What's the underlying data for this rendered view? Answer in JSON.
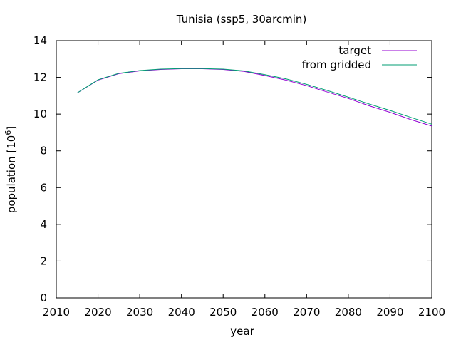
{
  "chart_data": {
    "type": "line",
    "title": "Tunisia (ssp5, 30arcmin)",
    "xlabel": "year",
    "ylabel": "population [10",
    "ylabel_exponent": "6",
    "ylabel_suffix": "]",
    "xlim": [
      2010,
      2100
    ],
    "ylim": [
      0,
      14
    ],
    "xticks": [
      2010,
      2020,
      2030,
      2040,
      2050,
      2060,
      2070,
      2080,
      2090,
      2100
    ],
    "yticks": [
      0,
      2,
      4,
      6,
      8,
      10,
      12,
      14
    ],
    "legend_position": "top-right",
    "grid": false,
    "series": [
      {
        "name": "target",
        "color": "#9400d3",
        "x": [
          2015,
          2020,
          2025,
          2030,
          2035,
          2040,
          2045,
          2050,
          2055,
          2060,
          2065,
          2070,
          2075,
          2080,
          2085,
          2090,
          2095,
          2100
        ],
        "y": [
          11.15,
          11.85,
          12.2,
          12.35,
          12.43,
          12.47,
          12.47,
          12.43,
          12.32,
          12.1,
          11.85,
          11.55,
          11.2,
          10.85,
          10.45,
          10.1,
          9.7,
          9.35
        ]
      },
      {
        "name": "from gridded",
        "color": "#009e73",
        "x": [
          2015,
          2020,
          2025,
          2030,
          2035,
          2040,
          2045,
          2050,
          2055,
          2060,
          2065,
          2070,
          2075,
          2080,
          2085,
          2090,
          2095,
          2100
        ],
        "y": [
          11.15,
          11.87,
          12.22,
          12.37,
          12.45,
          12.48,
          12.48,
          12.45,
          12.35,
          12.15,
          11.92,
          11.62,
          11.28,
          10.92,
          10.55,
          10.2,
          9.82,
          9.45
        ]
      }
    ]
  }
}
